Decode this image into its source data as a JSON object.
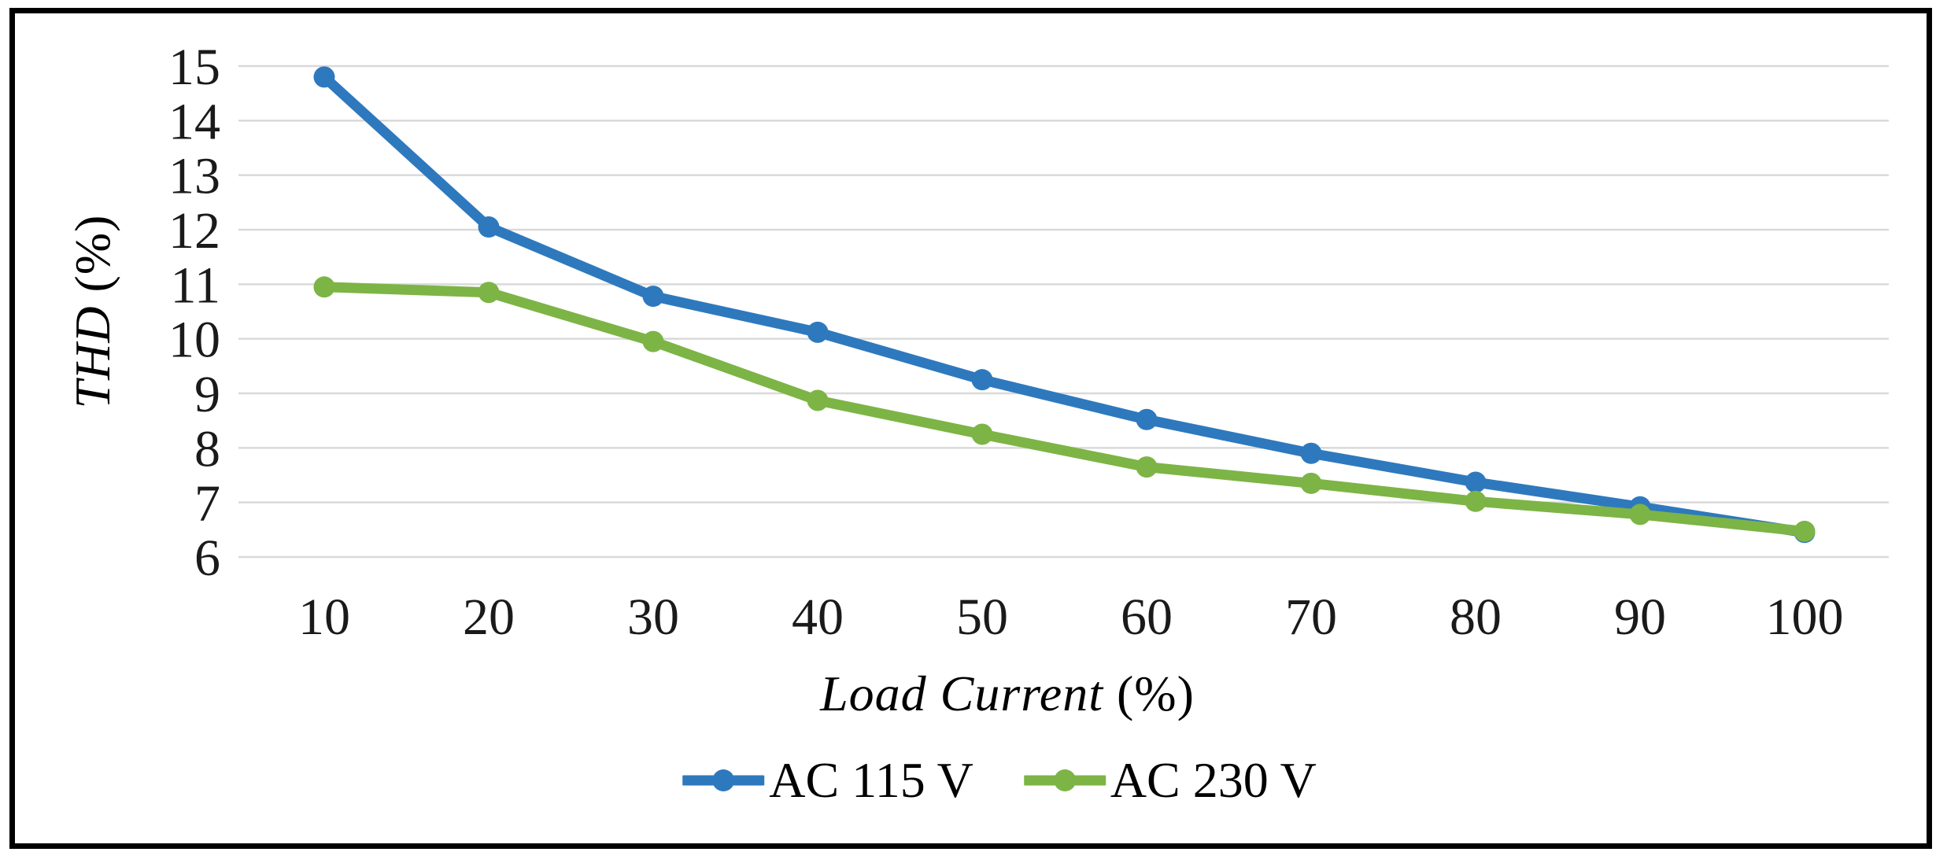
{
  "figure": {
    "background_color": "#ffffff",
    "border_color": "#000000",
    "text_color": "#000000"
  },
  "chart_data": {
    "type": "line",
    "title": "",
    "xlabel": "Load Current",
    "xlabel_unit": "(%)",
    "ylabel": "THD",
    "ylabel_unit": "(%)",
    "x": [
      10,
      20,
      30,
      40,
      50,
      60,
      70,
      80,
      90,
      100
    ],
    "xticks": [
      "10",
      "20",
      "30",
      "40",
      "50",
      "60",
      "70",
      "80",
      "90",
      "100"
    ],
    "yticks": [
      "15",
      "14",
      "13",
      "12",
      "11",
      "10",
      "9",
      "8",
      "7",
      "6"
    ],
    "ytick_values": [
      15,
      14,
      13,
      12,
      11,
      10,
      9,
      8,
      7,
      6
    ],
    "xlim": [
      10,
      100
    ],
    "ylim": [
      6,
      15
    ],
    "grid": "horizontal",
    "gridline_color": "#d9d9d9",
    "legend_position": "bottom-center",
    "marker": "circle",
    "series": [
      {
        "name": "AC 115 V",
        "color": "#2e79bd",
        "values": [
          14.8,
          12.05,
          10.78,
          10.12,
          9.25,
          8.52,
          7.9,
          7.37,
          6.92,
          6.45
        ]
      },
      {
        "name": "AC 230 V",
        "color": "#7db446",
        "values": [
          10.95,
          10.85,
          9.95,
          8.87,
          8.25,
          7.65,
          7.35,
          7.02,
          6.78,
          6.47
        ]
      }
    ]
  }
}
